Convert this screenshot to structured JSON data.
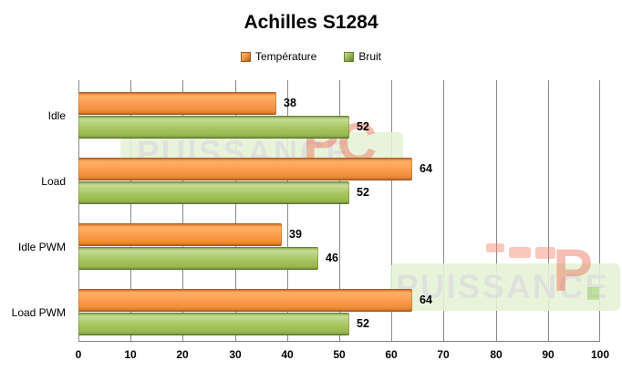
{
  "title": "Achilles S1284",
  "legend": {
    "items": [
      {
        "label": "Température",
        "color": "#F79646"
      },
      {
        "label": "Bruit",
        "color": "#9BBB59"
      }
    ]
  },
  "watermark": {
    "brand": "PUISSANCE",
    "logo": "PC",
    "logo_short": "P"
  },
  "chart_data": {
    "type": "bar",
    "orientation": "horizontal",
    "title": "Achilles S1284",
    "categories": [
      "Idle",
      "Load",
      "Idle PWM",
      "Load PWM"
    ],
    "series": [
      {
        "name": "Température",
        "color": "#F79646",
        "values": [
          38,
          64,
          39,
          64
        ]
      },
      {
        "name": "Bruit",
        "color": "#9BBB59",
        "values": [
          52,
          52,
          46,
          52
        ]
      }
    ],
    "xlabel": "",
    "ylabel": "",
    "xlim": [
      0,
      100
    ],
    "xticks": [
      0,
      10,
      20,
      30,
      40,
      50,
      60,
      70,
      80,
      90,
      100
    ],
    "grid": true,
    "legend_position": "top",
    "value_labels": true
  }
}
